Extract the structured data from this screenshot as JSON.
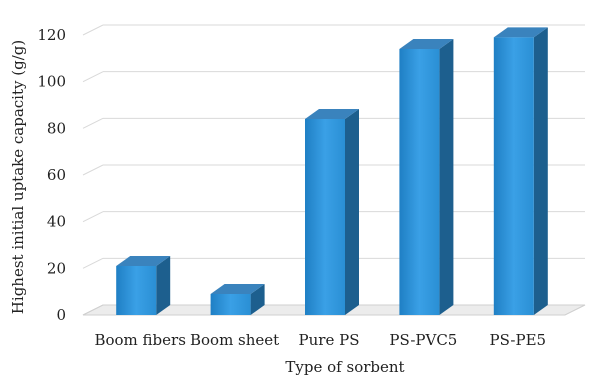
{
  "chart_data": {
    "type": "bar",
    "categories": [
      "Boom fibers",
      "Boom sheet",
      "Pure PS",
      "PS-PVC5",
      "PS-PE5"
    ],
    "values": [
      21,
      9,
      84,
      114,
      119
    ],
    "title": "",
    "xlabel": "Type of sorbent",
    "ylabel": "Highest initial uptake capacity (g/g)",
    "ylim": [
      0,
      120
    ],
    "yticks": [
      0,
      20,
      40,
      60,
      80,
      100,
      120
    ],
    "grid": true,
    "style": "3d",
    "colors": {
      "bar_front": "#2a8fd4",
      "bar_side": "#1d5f8e",
      "bar_top": "#3a83bd",
      "grid": "#d9d9d9",
      "floor": "#cfcfcf"
    }
  }
}
